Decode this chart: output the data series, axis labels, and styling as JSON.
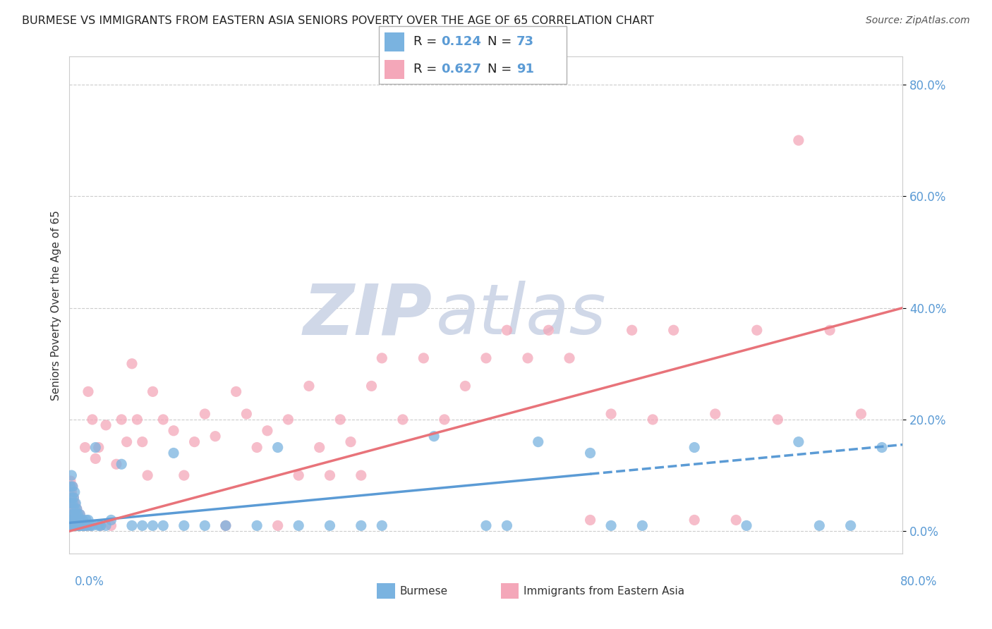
{
  "title": "BURMESE VS IMMIGRANTS FROM EASTERN ASIA SENIORS POVERTY OVER THE AGE OF 65 CORRELATION CHART",
  "source": "Source: ZipAtlas.com",
  "ylabel": "Seniors Poverty Over the Age of 65",
  "xlim": [
    0.0,
    0.8
  ],
  "ylim": [
    -0.04,
    0.85
  ],
  "yticks": [
    0.0,
    0.2,
    0.4,
    0.6,
    0.8
  ],
  "ytick_labels": [
    "0.0%",
    "20.0%",
    "40.0%",
    "60.0%",
    "80.0%"
  ],
  "burmese_color": "#7ab3e0",
  "immigrants_color": "#f4a7b9",
  "burmese_line_color": "#5b9bd5",
  "immigrants_line_color": "#e8737a",
  "R_burmese": "0.124",
  "N_burmese": "73",
  "R_immigrants": "0.627",
  "N_immigrants": "91",
  "background_color": "#ffffff",
  "grid_color": "#cccccc",
  "label_color": "#5b9bd5",
  "burmese_x": [
    0.001,
    0.001,
    0.001,
    0.002,
    0.002,
    0.002,
    0.002,
    0.003,
    0.003,
    0.003,
    0.003,
    0.004,
    0.004,
    0.004,
    0.005,
    0.005,
    0.005,
    0.006,
    0.006,
    0.006,
    0.007,
    0.007,
    0.007,
    0.008,
    0.008,
    0.009,
    0.009,
    0.01,
    0.01,
    0.011,
    0.011,
    0.012,
    0.013,
    0.014,
    0.015,
    0.016,
    0.017,
    0.018,
    0.02,
    0.022,
    0.025,
    0.028,
    0.03,
    0.035,
    0.04,
    0.05,
    0.06,
    0.07,
    0.08,
    0.09,
    0.1,
    0.11,
    0.13,
    0.15,
    0.18,
    0.2,
    0.22,
    0.25,
    0.28,
    0.3,
    0.35,
    0.4,
    0.42,
    0.45,
    0.5,
    0.52,
    0.55,
    0.6,
    0.65,
    0.7,
    0.72,
    0.75,
    0.78
  ],
  "burmese_y": [
    0.05,
    0.02,
    0.08,
    0.01,
    0.03,
    0.06,
    0.1,
    0.02,
    0.05,
    0.08,
    0.01,
    0.03,
    0.06,
    0.01,
    0.02,
    0.04,
    0.07,
    0.01,
    0.03,
    0.05,
    0.01,
    0.02,
    0.04,
    0.01,
    0.03,
    0.01,
    0.02,
    0.01,
    0.03,
    0.01,
    0.02,
    0.01,
    0.02,
    0.01,
    0.01,
    0.02,
    0.01,
    0.02,
    0.01,
    0.01,
    0.15,
    0.01,
    0.01,
    0.01,
    0.02,
    0.12,
    0.01,
    0.01,
    0.01,
    0.01,
    0.14,
    0.01,
    0.01,
    0.01,
    0.01,
    0.15,
    0.01,
    0.01,
    0.01,
    0.01,
    0.17,
    0.01,
    0.01,
    0.16,
    0.14,
    0.01,
    0.01,
    0.15,
    0.01,
    0.16,
    0.01,
    0.01,
    0.15
  ],
  "immigrants_x": [
    0.001,
    0.001,
    0.001,
    0.002,
    0.002,
    0.002,
    0.003,
    0.003,
    0.003,
    0.004,
    0.004,
    0.004,
    0.005,
    0.005,
    0.005,
    0.006,
    0.006,
    0.007,
    0.007,
    0.008,
    0.008,
    0.009,
    0.009,
    0.01,
    0.01,
    0.011,
    0.012,
    0.013,
    0.014,
    0.015,
    0.016,
    0.018,
    0.02,
    0.022,
    0.025,
    0.028,
    0.03,
    0.035,
    0.04,
    0.045,
    0.05,
    0.055,
    0.06,
    0.065,
    0.07,
    0.075,
    0.08,
    0.09,
    0.1,
    0.11,
    0.12,
    0.13,
    0.14,
    0.15,
    0.16,
    0.17,
    0.18,
    0.19,
    0.2,
    0.21,
    0.22,
    0.23,
    0.24,
    0.25,
    0.26,
    0.27,
    0.28,
    0.29,
    0.3,
    0.32,
    0.34,
    0.36,
    0.38,
    0.4,
    0.42,
    0.44,
    0.46,
    0.48,
    0.5,
    0.52,
    0.54,
    0.56,
    0.58,
    0.6,
    0.62,
    0.64,
    0.66,
    0.68,
    0.7,
    0.73,
    0.76
  ],
  "immigrants_y": [
    0.05,
    0.02,
    0.09,
    0.01,
    0.03,
    0.07,
    0.01,
    0.04,
    0.08,
    0.01,
    0.03,
    0.06,
    0.01,
    0.02,
    0.05,
    0.01,
    0.03,
    0.01,
    0.04,
    0.01,
    0.03,
    0.01,
    0.02,
    0.01,
    0.03,
    0.01,
    0.02,
    0.01,
    0.01,
    0.15,
    0.01,
    0.25,
    0.01,
    0.2,
    0.13,
    0.15,
    0.01,
    0.19,
    0.01,
    0.12,
    0.2,
    0.16,
    0.3,
    0.2,
    0.16,
    0.1,
    0.25,
    0.2,
    0.18,
    0.1,
    0.16,
    0.21,
    0.17,
    0.01,
    0.25,
    0.21,
    0.15,
    0.18,
    0.01,
    0.2,
    0.1,
    0.26,
    0.15,
    0.1,
    0.2,
    0.16,
    0.1,
    0.26,
    0.31,
    0.2,
    0.31,
    0.2,
    0.26,
    0.31,
    0.36,
    0.31,
    0.36,
    0.31,
    0.02,
    0.21,
    0.36,
    0.2,
    0.36,
    0.02,
    0.21,
    0.02,
    0.36,
    0.2,
    0.7,
    0.36,
    0.21
  ]
}
